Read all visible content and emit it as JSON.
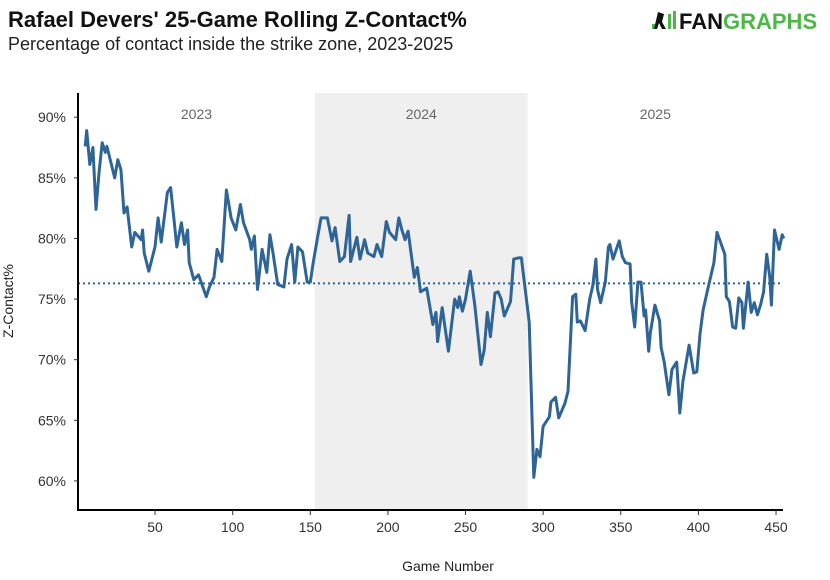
{
  "header": {
    "title": "Rafael Devers' 25-Game Rolling Z-Contact%",
    "subtitle": "Percentage of contact inside the strike zone, 2023-2025",
    "logo": "FANGRAPHS"
  },
  "chart_data": {
    "type": "line",
    "title": "Rafael Devers' 25-Game Rolling Z-Contact%",
    "subtitle": "Percentage of contact inside the strike zone, 2023-2025",
    "xlabel": "Game Number",
    "ylabel": "Z-Contact%",
    "xlim": [
      0,
      458
    ],
    "ylim": [
      57.6,
      92
    ],
    "x_ticks": [
      50,
      100,
      150,
      200,
      250,
      300,
      350,
      400,
      450
    ],
    "y_ticks": [
      60,
      65,
      70,
      75,
      80,
      85,
      90
    ],
    "y_tick_labels": [
      "60%",
      "65%",
      "70%",
      "75%",
      "80%",
      "85%",
      "90%"
    ],
    "grid": false,
    "line_color": "#2f6497",
    "shade_color": "#efefef",
    "average_line": {
      "value": 76.3,
      "style": "dotted"
    },
    "seasons": [
      {
        "label": "2023",
        "start": 0,
        "end": 153,
        "shaded": false
      },
      {
        "label": "2024",
        "start": 153,
        "end": 290,
        "shaded": true
      },
      {
        "label": "2025",
        "start": 290,
        "end": 458,
        "shaded": false
      }
    ],
    "x": [
      5,
      6,
      8,
      10,
      12,
      14,
      16,
      18,
      19,
      24,
      26,
      28,
      30,
      32,
      35,
      37,
      41,
      42,
      43,
      46,
      50,
      52,
      54,
      58,
      60,
      62,
      64,
      67,
      69,
      71,
      72,
      75,
      78,
      83,
      85,
      88,
      90,
      93,
      96,
      99,
      102,
      105,
      107,
      111,
      112,
      114,
      115,
      116,
      119,
      122,
      124,
      126,
      129,
      133,
      135,
      138,
      140,
      142,
      145,
      148,
      150,
      152,
      155,
      157,
      161,
      164,
      166,
      169,
      172,
      175,
      176,
      180,
      182,
      185,
      187,
      191,
      193,
      196,
      199,
      201,
      205,
      207,
      209,
      211,
      213,
      217,
      219,
      221,
      225,
      229,
      231,
      232,
      235,
      239,
      243,
      245,
      246,
      248,
      250,
      253,
      256,
      260,
      262,
      264,
      266,
      269,
      271,
      273,
      275,
      278,
      279,
      281,
      284,
      286,
      291,
      294,
      296,
      298,
      300,
      304,
      305,
      308,
      310,
      314,
      316,
      319,
      321,
      322,
      324,
      327,
      330,
      332,
      334,
      335,
      337,
      340,
      342,
      343,
      345,
      349,
      351,
      353,
      356,
      357,
      359,
      361,
      363,
      365,
      366,
      368,
      369,
      372,
      375,
      376,
      378,
      381,
      383,
      386,
      388,
      390,
      394,
      397,
      399,
      401,
      403,
      406,
      410,
      412,
      417,
      418,
      420,
      422,
      424,
      426,
      428,
      429,
      432,
      434,
      436,
      438,
      440,
      442,
      444,
      446,
      447,
      449,
      452,
      454,
      455
    ],
    "values": [
      87.6,
      88.9,
      86.1,
      87.5,
      82.4,
      85.5,
      87.9,
      87.1,
      87.6,
      85.0,
      86.5,
      85.7,
      82.1,
      82.6,
      79.3,
      80.5,
      79.9,
      80.7,
      78.8,
      77.3,
      79.3,
      81.7,
      79.7,
      83.8,
      84.2,
      81.8,
      79.3,
      81.3,
      79.5,
      80.7,
      78.0,
      76.6,
      77.0,
      75.2,
      76.0,
      76.8,
      79.1,
      78.1,
      84.0,
      81.7,
      80.7,
      82.8,
      81.3,
      79.9,
      79.1,
      80.2,
      78.0,
      75.8,
      79.1,
      77.2,
      80.3,
      78.8,
      76.2,
      76.0,
      78.3,
      79.5,
      76.4,
      79.3,
      78.9,
      76.4,
      76.4,
      78.1,
      80.3,
      81.7,
      81.7,
      79.8,
      80.9,
      78.1,
      78.5,
      81.9,
      78.1,
      80.1,
      78.3,
      79.9,
      78.8,
      78.5,
      79.5,
      78.5,
      81.4,
      80.5,
      79.9,
      81.7,
      80.7,
      79.9,
      80.6,
      76.8,
      77.6,
      75.6,
      75.9,
      72.9,
      73.9,
      71.5,
      74.3,
      70.7,
      75.0,
      74.3,
      75.2,
      74.0,
      75.0,
      77.3,
      74.5,
      69.6,
      70.8,
      73.9,
      71.9,
      75.5,
      75.6,
      75.0,
      73.6,
      74.5,
      74.8,
      78.3,
      78.4,
      78.4,
      73.1,
      60.3,
      62.6,
      62.0,
      64.5,
      65.3,
      66.5,
      66.9,
      65.2,
      66.4,
      67.4,
      75.2,
      75.4,
      73.1,
      73.2,
      72.4,
      75.0,
      76.1,
      78.3,
      75.8,
      74.7,
      76.4,
      79.3,
      79.5,
      78.3,
      79.8,
      78.5,
      78.0,
      77.9,
      74.8,
      72.7,
      76.4,
      76.4,
      73.6,
      74.1,
      70.7,
      72.2,
      74.5,
      73.2,
      71.0,
      69.8,
      67.1,
      69.2,
      69.8,
      65.6,
      68.2,
      71.2,
      68.9,
      69.0,
      72.1,
      74.1,
      75.8,
      78.0,
      80.5,
      78.7,
      75.2,
      74.8,
      72.7,
      72.6,
      75.1,
      74.7,
      72.6,
      76.4,
      73.9,
      74.7,
      73.7,
      74.5,
      75.6,
      78.7,
      76.8,
      74.5,
      80.7,
      79.1,
      80.3,
      80.0
    ]
  }
}
